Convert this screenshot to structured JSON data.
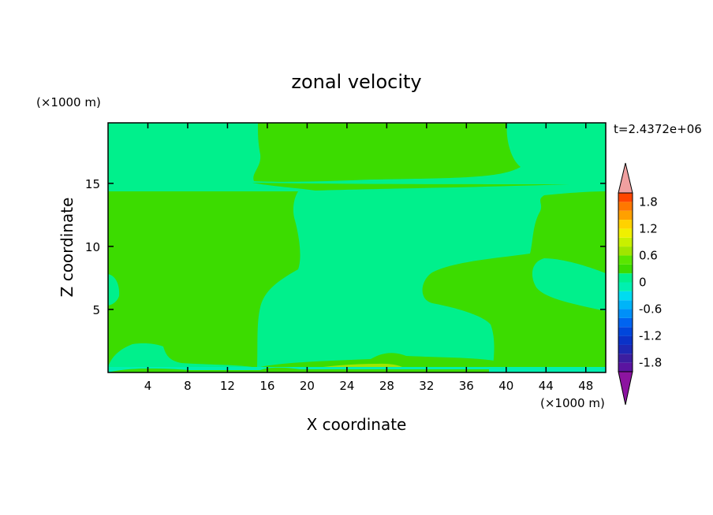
{
  "chart_data": {
    "type": "heatmap",
    "title": "zonal velocity",
    "xlabel": "X coordinate",
    "ylabel": "Z coordinate",
    "x_unit": "(×1000 m)",
    "y_unit": "(×1000 m)",
    "time_label": "t=2.4372e+06",
    "xlim": [
      0,
      50
    ],
    "ylim": [
      0,
      19.8
    ],
    "x_ticks": [
      4,
      8,
      12,
      16,
      20,
      24,
      28,
      32,
      36,
      40,
      44,
      48
    ],
    "y_ticks": [
      5,
      10,
      15
    ],
    "colorbar": {
      "levels": [
        -2.0,
        -1.8,
        -1.6,
        -1.4,
        -1.2,
        -1.0,
        -0.8,
        -0.6,
        -0.4,
        -0.2,
        0.0,
        0.2,
        0.4,
        0.6,
        0.8,
        1.0,
        1.2,
        1.4,
        1.6,
        1.8,
        2.0
      ],
      "tick_labels": [
        "1.8",
        "1.2",
        "0.6",
        "0",
        "-0.6",
        "-1.2",
        "-1.8"
      ],
      "tick_values": [
        1.8,
        1.2,
        0.6,
        0.0,
        -0.6,
        -1.2,
        -1.8
      ],
      "colors": [
        "#5a14a0",
        "#3c1ea0",
        "#1e28b4",
        "#0a32c8",
        "#0046dc",
        "#0064f0",
        "#0090f8",
        "#00b4f8",
        "#00dcf0",
        "#00f0b0",
        "#00f08c",
        "#3cdc00",
        "#5ae600",
        "#a0e600",
        "#c8f000",
        "#f0f000",
        "#ffd200",
        "#ffa000",
        "#ff7800",
        "#ff4600",
        "#e61414"
      ],
      "over_color": "#f0a0a0",
      "under_color": "#8c14a0"
    },
    "region_colors": {
      "background": "#00f08c",
      "positive": "#3cdc00",
      "strong_positive": "#a0e600"
    }
  }
}
